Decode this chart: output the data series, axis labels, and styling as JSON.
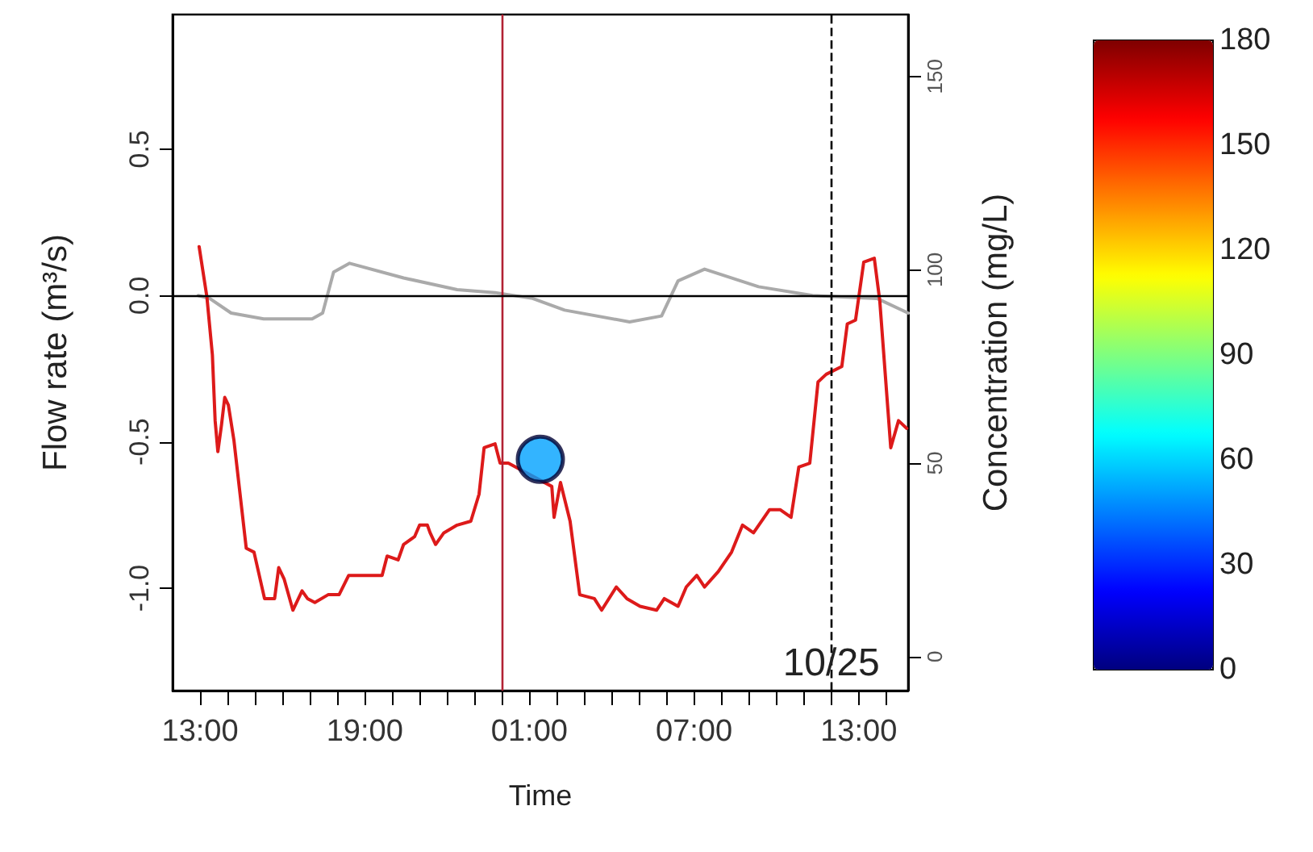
{
  "chart_data": {
    "type": "line",
    "xlabel": "Time",
    "ylabel": "Flow rate (m³/s)",
    "y2label": "Concentration (mg/L)",
    "xlim": [
      "--10-24T12:00",
      "--10-25T14:48"
    ],
    "xticks": [
      {
        "value": "--10-24T13:00",
        "label": "13:00"
      },
      {
        "value": "--10-24T14:00",
        "label": null
      },
      {
        "value": "--10-24T15:00",
        "label": null
      },
      {
        "value": "--10-24T16:00",
        "label": null
      },
      {
        "value": "--10-24T17:00",
        "label": null
      },
      {
        "value": "--10-24T18:00",
        "label": null
      },
      {
        "value": "--10-24T19:00",
        "label": "19:00"
      },
      {
        "value": "--10-24T20:00",
        "label": null
      },
      {
        "value": "--10-24T21:00",
        "label": null
      },
      {
        "value": "--10-24T22:00",
        "label": null
      },
      {
        "value": "--10-24T23:00",
        "label": null
      },
      {
        "value": "--10-25T00:00",
        "label": null
      },
      {
        "value": "--10-25T01:00",
        "label": "01:00"
      },
      {
        "value": "--10-25T02:00",
        "label": null
      },
      {
        "value": "--10-25T03:00",
        "label": null
      },
      {
        "value": "--10-25T04:00",
        "label": null
      },
      {
        "value": "--10-25T05:00",
        "label": null
      },
      {
        "value": "--10-25T06:00",
        "label": null
      },
      {
        "value": "--10-25T07:00",
        "label": "07:00"
      },
      {
        "value": "--10-25T08:00",
        "label": null
      },
      {
        "value": "--10-25T09:00",
        "label": null
      },
      {
        "value": "--10-25T10:00",
        "label": null
      },
      {
        "value": "--10-25T11:00",
        "label": null
      },
      {
        "value": "--10-25T12:00",
        "label": null
      },
      {
        "value": "--10-25T13:00",
        "label": "13:00"
      },
      {
        "value": "--10-25T14:00",
        "label": null
      }
    ],
    "ylim": [
      -1.35,
      0.96
    ],
    "yticks": [
      {
        "value": -1,
        "label": "-1.0"
      },
      {
        "value": -0.5,
        "label": "-0.5"
      },
      {
        "value": 0,
        "label": "0.0"
      },
      {
        "value": 0.5,
        "label": "0.5"
      }
    ],
    "y2lim": [
      -8.8,
      166
    ],
    "y2ticks": [
      0,
      50,
      100,
      150
    ],
    "clim": [
      0,
      180
    ],
    "cticks": [
      0,
      30,
      60,
      90,
      120,
      150,
      180
    ],
    "grid": false,
    "line_style": "solid",
    "series": [
      {
        "color": "#aaaaaa",
        "x": [
          "--10-24T12:56",
          "--10-24T13:21",
          "--10-24T14:08",
          "--10-24T15:19",
          "--10-24T17:05",
          "--10-24T17:28",
          "--10-24T17:52",
          "--10-24T18:27",
          "--10-24T20:25",
          "--10-24T22:22",
          "--10-24T23:45",
          "--10-25T01:07",
          "--10-25T02:17",
          "--10-25T04:39",
          "--10-25T05:49",
          "--10-25T06:25",
          "--10-25T07:23",
          "--10-25T09:21",
          "--10-25T11:19",
          "--10-25T13:40",
          "--10-25T14:48"
        ],
        "values": [
          0.0,
          -0.01,
          -0.06,
          -0.08,
          -0.08,
          -0.06,
          0.08,
          0.11,
          0.06,
          0.02,
          0.01,
          -0.01,
          -0.05,
          -0.09,
          -0.07,
          0.05,
          0.09,
          0.03,
          0.0,
          -0.01,
          -0.06
        ]
      },
      {
        "color": "#dd1a1a",
        "axis": "y2",
        "x": [
          "--10-24T12:58",
          "--10-24T13:15",
          "--10-24T13:27",
          "--10-24T13:33",
          "--10-24T13:39",
          "--10-24T13:47",
          "--10-24T13:54",
          "--10-24T14:02",
          "--10-24T14:14",
          "--10-24T14:41",
          "--10-24T14:58",
          "--10-24T15:21",
          "--10-24T15:43",
          "--10-24T15:52",
          "--10-24T16:04",
          "--10-24T16:23",
          "--10-24T16:43",
          "--10-24T16:55",
          "--10-24T17:11",
          "--10-24T17:40",
          "--10-24T18:04",
          "--10-24T18:25",
          "--10-24T18:56",
          "--10-24T19:38",
          "--10-24T19:49",
          "--10-24T20:13",
          "--10-24T20:25",
          "--10-24T20:49",
          "--10-24T21:00",
          "--10-24T21:17",
          "--10-24T21:23",
          "--10-24T21:35",
          "--10-24T21:53",
          "--10-24T22:22",
          "--10-24T22:52",
          "--10-24T23:10",
          "--10-24T23:21",
          "--10-24T23:45",
          "--10-24T23:56",
          "--10-25T00:14",
          "--10-25T01:49",
          "--10-25T01:54",
          "--10-25T02:08",
          "--10-25T02:29",
          "--10-25T02:50",
          "--10-25T03:22",
          "--10-25T03:38",
          "--10-25T04:10",
          "--10-25T04:33",
          "--10-25T05:02",
          "--10-25T05:38",
          "--10-25T05:55",
          "--10-25T06:25",
          "--10-25T06:43",
          "--10-25T07:06",
          "--10-25T07:23",
          "--10-25T07:53",
          "--10-25T08:22",
          "--10-25T08:46",
          "--10-25T09:10",
          "--10-25T09:45",
          "--10-25T10:08",
          "--10-25T10:32",
          "--10-25T10:49",
          "--10-25T11:13",
          "--10-25T11:31",
          "--10-25T11:49",
          "--10-25T12:23",
          "--10-25T12:35",
          "--10-25T12:53",
          "--10-25T13:11",
          "--10-25T13:34",
          "--10-25T13:46",
          "--10-25T14:10",
          "--10-25T14:27",
          "--10-25T14:45"
        ],
        "values": [
          106,
          93,
          78,
          61,
          53,
          60,
          67,
          65,
          56,
          28,
          27,
          15,
          15,
          23,
          20,
          12,
          17,
          15,
          14,
          16,
          16,
          21,
          21,
          21,
          26,
          25,
          29,
          31,
          34,
          34,
          32,
          29,
          32,
          34,
          35,
          42,
          54,
          55,
          50,
          50,
          44,
          36,
          45,
          35,
          16,
          15,
          12,
          18,
          15,
          13,
          12,
          15,
          13,
          18,
          21,
          18,
          22,
          27,
          34,
          32,
          38,
          38,
          36,
          49,
          50,
          71,
          73,
          75,
          86,
          87,
          102,
          103,
          92,
          54,
          61,
          59
        ]
      },
      {
        "type": "scatter",
        "axis": "y2",
        "marker": "circle",
        "x": [
          "--10-25T01:24"
        ],
        "values": [
          51
        ],
        "cvalues": [
          51
        ]
      }
    ],
    "ref_lines": [
      {
        "axis": "x",
        "value": "--10-25T00:00",
        "color": "#b22234",
        "line_style": "solid"
      },
      {
        "axis": "x",
        "value": "--10-25T12:00",
        "color": "#000000",
        "line_style": "dashed",
        "label": "10/25"
      },
      {
        "axis": "y",
        "value": 0,
        "color": "#000000",
        "line_style": "solid"
      }
    ]
  }
}
